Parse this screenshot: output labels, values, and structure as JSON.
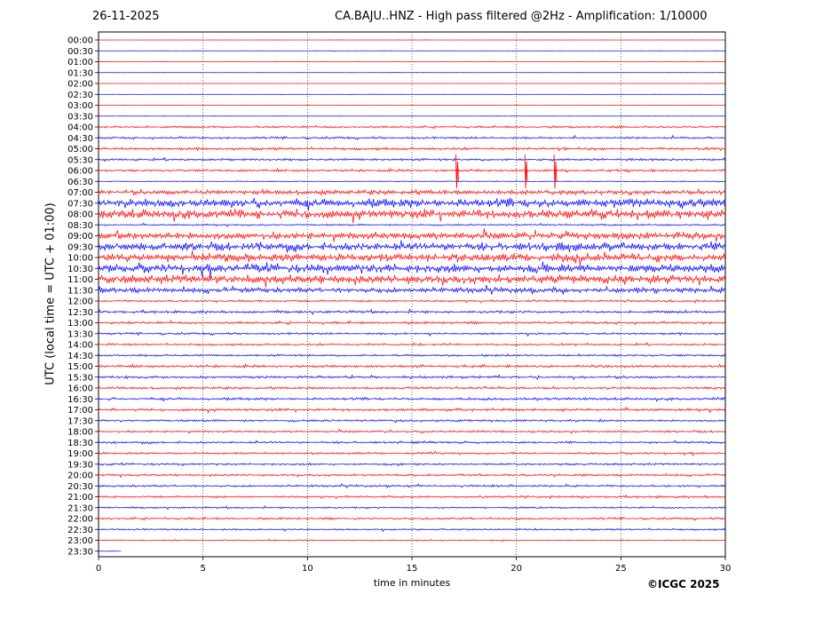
{
  "header": {
    "date": "26-11-2025",
    "title": "CA.BAJU..HNZ - High pass filtered @2Hz - Amplification: 1/10000"
  },
  "footer": {
    "copyright": "©ICGC 2025"
  },
  "colors": {
    "even_rows": "#ff0000",
    "odd_rows": "#0000ff",
    "grid": "#000000"
  },
  "chart_data": {
    "type": "line",
    "title": "CA.BAJU..HNZ - High pass filtered @2Hz - Amplification: 1/10000",
    "xlabel": "time in minutes",
    "ylabel": "UTC (local time = UTC + 01:00)",
    "xlim": [
      0,
      30
    ],
    "xticks": [
      0,
      5,
      10,
      15,
      20,
      25,
      30
    ],
    "grid": "vertical dotted at 5-minute intervals",
    "rows": [
      "00:00",
      "00:30",
      "01:00",
      "01:30",
      "02:00",
      "02:30",
      "03:00",
      "03:30",
      "04:00",
      "04:30",
      "05:00",
      "05:30",
      "06:00",
      "06:30",
      "07:00",
      "07:30",
      "08:00",
      "08:30",
      "09:00",
      "09:30",
      "10:00",
      "10:30",
      "11:00",
      "11:30",
      "12:00",
      "12:30",
      "13:00",
      "13:30",
      "14:00",
      "14:30",
      "15:00",
      "15:30",
      "16:00",
      "16:30",
      "17:00",
      "17:30",
      "18:00",
      "18:30",
      "19:00",
      "19:30",
      "20:00",
      "20:30",
      "21:00",
      "21:30",
      "22:00",
      "22:30",
      "23:00",
      "23:30"
    ],
    "trace_amplitude": [
      0.02,
      0.02,
      0.02,
      0.02,
      0.02,
      0.02,
      0.02,
      0.02,
      0.25,
      0.25,
      0.3,
      0.28,
      0.28,
      0.1,
      0.55,
      1,
      1,
      0.2,
      0.8,
      0.9,
      0.95,
      1,
      0.95,
      0.6,
      0.25,
      0.3,
      0.3,
      0.25,
      0.25,
      0.25,
      0.3,
      0.3,
      0.3,
      0.3,
      0.3,
      0.25,
      0.25,
      0.25,
      0.25,
      0.25,
      0.25,
      0.25,
      0.25,
      0.2,
      0.25,
      0.2,
      0.15,
      0.1
    ],
    "trace_end_minute": [
      30,
      30,
      30,
      30,
      30,
      30,
      30,
      30,
      30,
      30,
      30,
      30,
      30,
      30,
      30,
      30,
      30,
      30,
      30,
      30,
      30,
      30,
      30,
      30,
      30,
      30,
      30,
      30,
      30,
      30,
      30,
      30,
      30,
      30,
      30,
      30,
      30,
      30,
      30,
      30,
      30,
      30,
      30,
      30,
      30,
      30,
      30,
      1.1
    ],
    "events": [
      {
        "row": "06:00",
        "minute": 17.1
      },
      {
        "row": "06:00",
        "minute": 20.4
      },
      {
        "row": "06:00",
        "minute": 21.8
      }
    ]
  }
}
